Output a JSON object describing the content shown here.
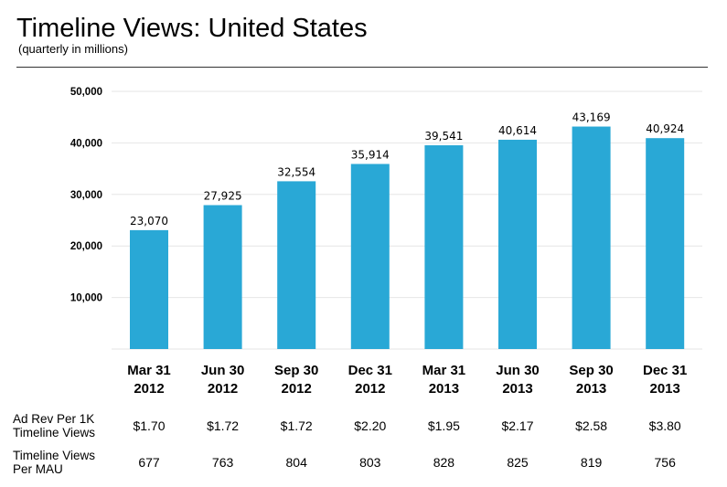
{
  "header": {
    "title": "Timeline Views: United States",
    "subtitle": "(quarterly in millions)"
  },
  "colors": {
    "bar": "#29A8D6",
    "grid": "#E6E6E6",
    "text": "#000000"
  },
  "chart_data": {
    "type": "bar",
    "title": "Timeline Views: United States",
    "subtitle": "(quarterly in millions)",
    "categories": [
      [
        "Mar 31",
        "2012"
      ],
      [
        "Jun 30",
        "2012"
      ],
      [
        "Sep 30",
        "2012"
      ],
      [
        "Dec 31",
        "2012"
      ],
      [
        "Mar 31",
        "2013"
      ],
      [
        "Jun 30",
        "2013"
      ],
      [
        "Sep 30",
        "2013"
      ],
      [
        "Dec 31",
        "2013"
      ]
    ],
    "values": [
      23070,
      27925,
      32554,
      35914,
      39541,
      40614,
      43169,
      40924
    ],
    "value_labels": [
      "23,070",
      "27,925",
      "32,554",
      "35,914",
      "39,541",
      "40,614",
      "43,169",
      "40,924"
    ],
    "ylim": [
      0,
      50000
    ],
    "yticks": [
      10000,
      20000,
      30000,
      40000,
      50000
    ],
    "ytick_labels": [
      "10,000",
      "20,000",
      "30,000",
      "40,000",
      "50,000"
    ],
    "grid": true,
    "legend": "none"
  },
  "table": {
    "rows": [
      {
        "label_lines": [
          "Ad Rev Per 1K",
          "Timeline Views"
        ],
        "values": [
          "$1.70",
          "$1.72",
          "$1.72",
          "$2.20",
          "$1.95",
          "$2.17",
          "$2.58",
          "$3.80"
        ]
      },
      {
        "label_lines": [
          "Timeline Views",
          "Per MAU"
        ],
        "values": [
          "677",
          "763",
          "804",
          "803",
          "828",
          "825",
          "819",
          "756"
        ]
      }
    ]
  }
}
